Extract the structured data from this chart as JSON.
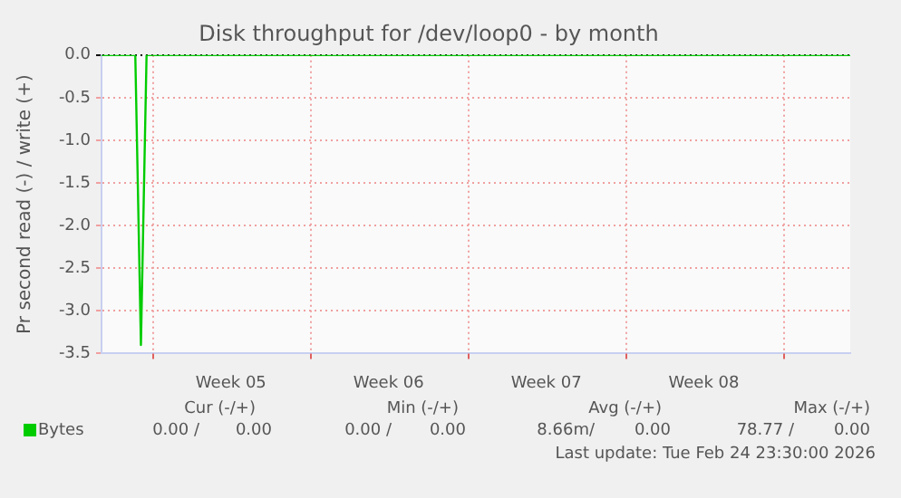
{
  "chart_data": {
    "type": "line",
    "title": "Disk throughput for /dev/loop0 - by month",
    "ylabel": "Pr second read (-) / write (+)",
    "categories": [
      null,
      null,
      null,
      null,
      null,
      null,
      null,
      null,
      null,
      null,
      null,
      null,
      null,
      null,
      null,
      null,
      null,
      null,
      null,
      null,
      null,
      null,
      null,
      "Week 05",
      null,
      null,
      null,
      null,
      null,
      null,
      null,
      null,
      null,
      null,
      null,
      null,
      null,
      null,
      null,
      null,
      null,
      null,
      null,
      null,
      null,
      null,
      null,
      null,
      null,
      null,
      null,
      "Week 06",
      null,
      null,
      null,
      null,
      null,
      null,
      null,
      null,
      null,
      null,
      null,
      null,
      null,
      null,
      null,
      null,
      null,
      null,
      null,
      null,
      null,
      null,
      null,
      null,
      null,
      null,
      null,
      "Week 07",
      null,
      null,
      null,
      null,
      null,
      null,
      null,
      null,
      null,
      null,
      null,
      null,
      null,
      null,
      null,
      null,
      null,
      null,
      null,
      null,
      null,
      null,
      null,
      null,
      null,
      null,
      null,
      "Week 08",
      null,
      null,
      null,
      null,
      null,
      null,
      null,
      null,
      null,
      null,
      null,
      null,
      null,
      null,
      null,
      null,
      null,
      null,
      null,
      null,
      null,
      null,
      null,
      null,
      null,
      null
    ],
    "series": [
      {
        "name": "Bytes",
        "color": "#00cc00",
        "values": [
          0,
          0,
          0,
          0,
          0,
          0,
          0,
          -3.4,
          0,
          0,
          0,
          0,
          0,
          0,
          0,
          0,
          0,
          0,
          0,
          0,
          0,
          0,
          0,
          0,
          0,
          0,
          0,
          0,
          0,
          0,
          0,
          0,
          0,
          0,
          0,
          0,
          0,
          0,
          0,
          0,
          0,
          0,
          0,
          0,
          0,
          0,
          0,
          0,
          0,
          0,
          0,
          0,
          0,
          0,
          0,
          0,
          0,
          0,
          0,
          0,
          0,
          0,
          0,
          0,
          0,
          0,
          0,
          0,
          0,
          0,
          0,
          0,
          0,
          0,
          0,
          0,
          0,
          0,
          0,
          0,
          0,
          0,
          0,
          0,
          0,
          0,
          0,
          0,
          0,
          0,
          0,
          0,
          0,
          0,
          0,
          0,
          0,
          0,
          0,
          0,
          0,
          0,
          0,
          0,
          0,
          0,
          0,
          0,
          0,
          0,
          0,
          0,
          0,
          0,
          0,
          0,
          0,
          0,
          0,
          0,
          0,
          0,
          0,
          0,
          0,
          0,
          0,
          0,
          0,
          0,
          0,
          0,
          0,
          0
        ]
      }
    ],
    "ylim": [
      -3.5,
      0
    ],
    "yticks": [
      {
        "value": -3.5,
        "label": "-3.5"
      },
      {
        "value": -3,
        "label": "-3.0"
      },
      {
        "value": -2.5,
        "label": "-2.5"
      },
      {
        "value": -2,
        "label": "-2.0"
      },
      {
        "value": -1.5,
        "label": "-1.5"
      },
      {
        "value": -1,
        "label": "-1.0"
      },
      {
        "value": -0.5,
        "label": "-0.5"
      },
      {
        "value": 0,
        "label": "0.0"
      }
    ],
    "grid": true,
    "legend": "bottom left",
    "marker": "none",
    "line_style": "solid",
    "annotations": [
      "Cur (-/+)",
      "Min (-/+)",
      "Avg (-/+)",
      "Max (-/+)",
      "0.00 /",
      "0.00",
      "0.00 /",
      "0.00",
      "8.66m/",
      "0.00",
      "78.77 /",
      "0.00",
      "Last update: Tue Feb 24 23:30:00 2026"
    ]
  }
}
